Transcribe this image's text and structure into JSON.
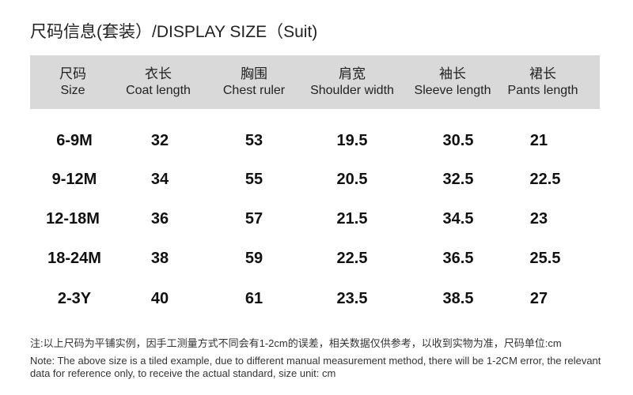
{
  "title": "尺码信息(套装）/DISPLAY  SIZE（Suit)",
  "table": {
    "headers": [
      {
        "zh": "尺码",
        "en": "Size"
      },
      {
        "zh": "衣长",
        "en": "Coat length"
      },
      {
        "zh": "胸围",
        "en": "Chest ruler"
      },
      {
        "zh": "肩宽",
        "en": "Shoulder  width"
      },
      {
        "zh": "袖长",
        "en": "Sleeve length"
      },
      {
        "zh": "裙长",
        "en": "Pants length"
      }
    ],
    "rows": [
      [
        "6-9M",
        "32",
        "53",
        "19.5",
        "30.5",
        "21"
      ],
      [
        "9-12M",
        "34",
        "55",
        "20.5",
        "32.5",
        "22.5"
      ],
      [
        "12-18M",
        "36",
        "57",
        "21.5",
        "34.5",
        "23"
      ],
      [
        "18-24M",
        "38",
        "59",
        "22.5",
        "36.5",
        "25.5"
      ],
      [
        "2-3Y",
        "40",
        "61",
        "23.5",
        "38.5",
        "27"
      ]
    ]
  },
  "notes": {
    "zh": "注:以上尺码为平铺实例，因手工测量方式不同会有1-2cm的误差，相关数据仅供参考，以收到实物为准，尺码单位:cm",
    "en": "Note: The above size is a tiled example, due to different manual measurement method, there will be 1-2CM error, the relevant data for reference only, to receive the actual standard, size unit: cm"
  }
}
